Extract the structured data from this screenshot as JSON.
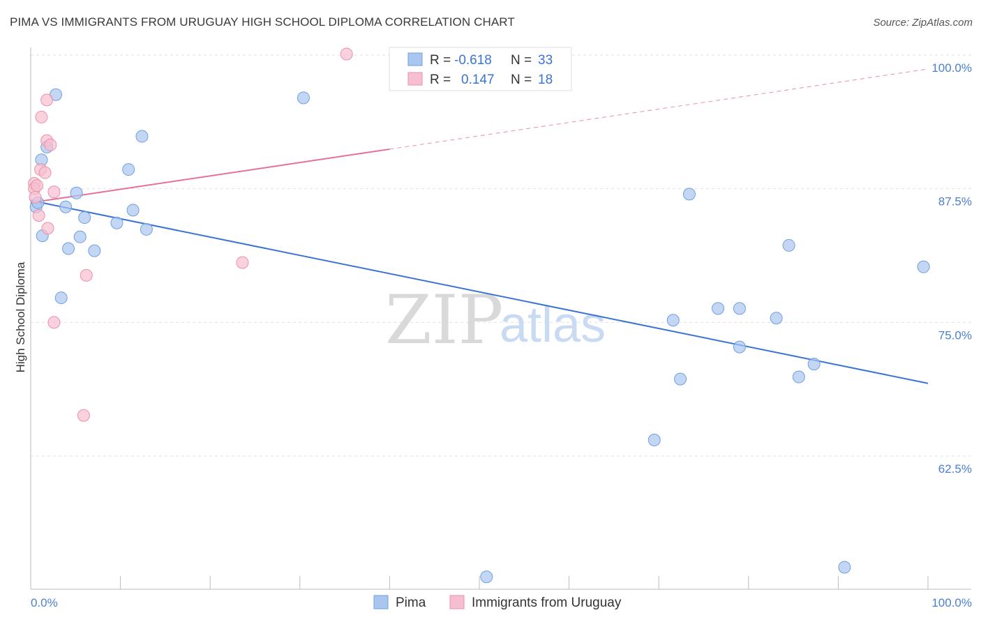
{
  "chart_data": {
    "type": "scatter",
    "title": "PIMA VS IMMIGRANTS FROM URUGUAY HIGH SCHOOL DIPLOMA CORRELATION CHART",
    "source": "Source: ZipAtlas.com",
    "ylabel": "High School Diploma",
    "xlim": [
      0,
      100
    ],
    "ylim": [
      50,
      102
    ],
    "x_tick_labels": [
      "0.0%",
      "100.0%"
    ],
    "y_ticks": [
      62.5,
      75.0,
      87.5,
      100.0
    ],
    "y_tick_labels": [
      "62.5%",
      "75.0%",
      "87.5%",
      "100.0%"
    ],
    "grid": true,
    "legend": {
      "position": "top-center",
      "rows": [
        {
          "r_label": "R =",
          "r_value": "-0.618",
          "n_label": "N =",
          "n_value": "33"
        },
        {
          "r_label": "R =",
          "r_value": "0.147",
          "n_label": "N =",
          "n_value": "18"
        }
      ]
    },
    "watermark": {
      "zip": "ZIP",
      "atlas": "atlas"
    },
    "series": [
      {
        "name": "Pima",
        "color": "#a9c6ef",
        "stroke": "#6f9fe0",
        "trend_color": "#3b73d1",
        "trend": {
          "x0": 0,
          "y0": 86.4,
          "x1": 100,
          "y1": 69.3,
          "dashed_from": null
        },
        "points": [
          [
            2.8,
            96.3
          ],
          [
            1.8,
            91.4
          ],
          [
            0.6,
            85.8
          ],
          [
            1.2,
            90.2
          ],
          [
            0.8,
            86.2
          ],
          [
            5.1,
            87.1
          ],
          [
            3.9,
            85.8
          ],
          [
            6.0,
            84.8
          ],
          [
            9.6,
            84.3
          ],
          [
            11.4,
            85.5
          ],
          [
            1.3,
            83.1
          ],
          [
            5.5,
            83.0
          ],
          [
            4.2,
            81.9
          ],
          [
            7.1,
            81.7
          ],
          [
            12.9,
            83.7
          ],
          [
            10.9,
            89.3
          ],
          [
            12.4,
            92.4
          ],
          [
            3.4,
            77.3
          ],
          [
            30.4,
            96.0
          ],
          [
            73.4,
            87.0
          ],
          [
            84.5,
            82.2
          ],
          [
            99.5,
            80.2
          ],
          [
            71.6,
            75.2
          ],
          [
            76.6,
            76.3
          ],
          [
            79.0,
            76.3
          ],
          [
            83.1,
            75.4
          ],
          [
            79.0,
            72.7
          ],
          [
            72.4,
            69.7
          ],
          [
            85.6,
            69.9
          ],
          [
            87.3,
            71.1
          ],
          [
            69.5,
            64.0
          ],
          [
            50.8,
            51.2
          ],
          [
            90.7,
            52.1
          ]
        ]
      },
      {
        "name": "Immigrants from Uruguay",
        "color": "#f6bfd0",
        "stroke": "#ec8fab",
        "trend_color": "#e3719a",
        "trend": {
          "x0": 0,
          "y0": 86.2,
          "x1": 100,
          "y1": 98.7,
          "dashed_from": 40
        },
        "points": [
          [
            35.2,
            100.1
          ],
          [
            1.8,
            95.8
          ],
          [
            1.2,
            94.2
          ],
          [
            1.8,
            92.0
          ],
          [
            2.2,
            91.6
          ],
          [
            1.1,
            89.3
          ],
          [
            1.6,
            89.0
          ],
          [
            0.4,
            88.0
          ],
          [
            0.4,
            87.5
          ],
          [
            2.6,
            87.2
          ],
          [
            0.9,
            85.0
          ],
          [
            1.9,
            83.8
          ],
          [
            23.6,
            80.6
          ],
          [
            6.2,
            79.4
          ],
          [
            2.6,
            75.0
          ],
          [
            5.9,
            66.3
          ],
          [
            0.5,
            86.7
          ],
          [
            0.7,
            87.8
          ]
        ]
      }
    ]
  }
}
